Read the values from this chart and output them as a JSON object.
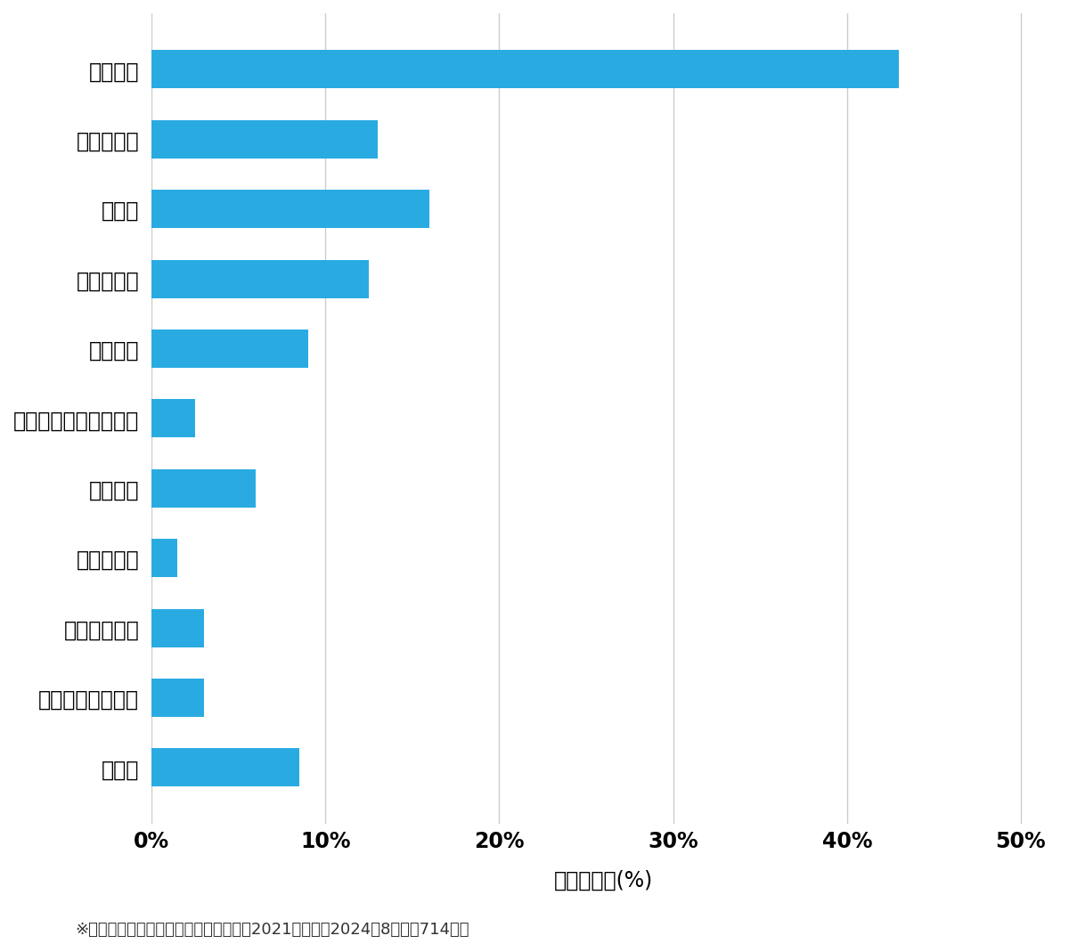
{
  "categories": [
    "玄関開錠",
    "玄関鍵交換",
    "車開錠",
    "その他開錠",
    "車鍵作成",
    "イモビ付国産車鍵作成",
    "金庫開錠",
    "玄関鍵作成",
    "その他鍵作成",
    "スーツケース開錠",
    "その他"
  ],
  "values": [
    43.0,
    13.0,
    16.0,
    12.5,
    9.0,
    2.5,
    6.0,
    1.5,
    3.0,
    3.0,
    8.5
  ],
  "bar_color": "#29ABE2",
  "background_color": "#FFFFFF",
  "xlabel": "件数の割合(%)",
  "xlim": [
    0,
    52
  ],
  "xticks": [
    0,
    10,
    20,
    30,
    40,
    50
  ],
  "xtick_labels": [
    "0%",
    "10%",
    "20%",
    "30%",
    "40%",
    "50%"
  ],
  "footnote": "※弊社受付の案件を対象に集計（期間：2021年１月〜2024年8月、計714件）",
  "grid_color": "#CCCCCC",
  "bar_height": 0.55,
  "axis_label_fontsize": 17,
  "tick_fontsize": 17,
  "category_fontsize": 17,
  "footnote_fontsize": 13
}
